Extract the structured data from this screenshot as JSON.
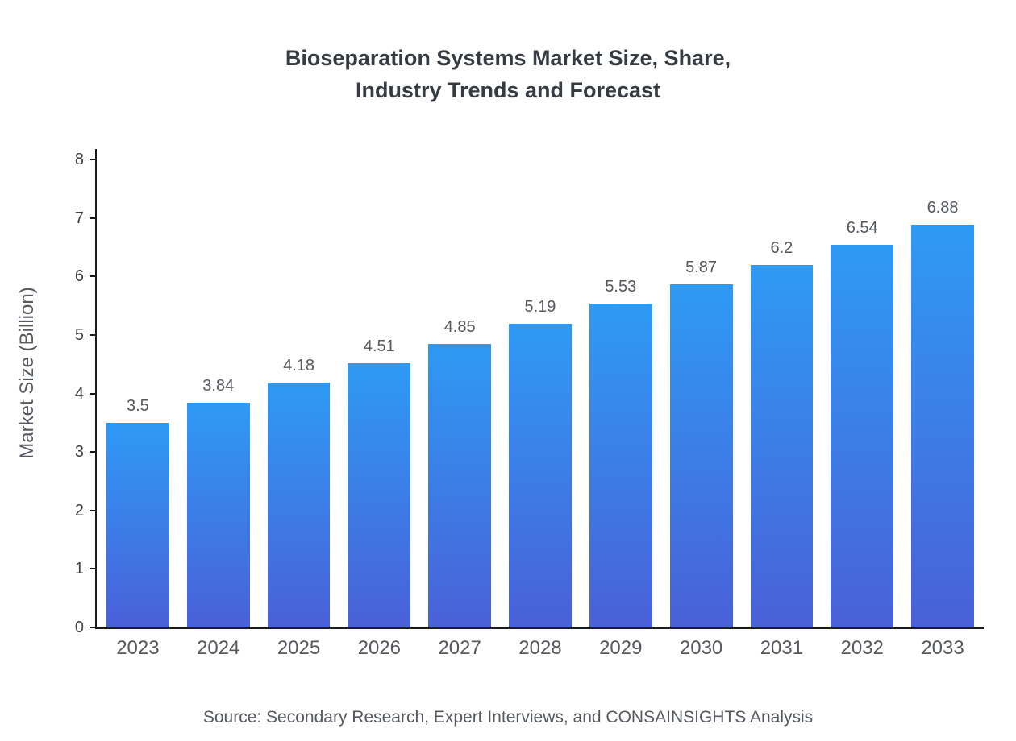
{
  "chart": {
    "title_line1": "Bioseparation Systems Market Size, Share,",
    "title_line2": "Industry Trends and Forecast",
    "source": "Source: Secondary Research, Expert Interviews, and CONSAINSIGHTS Analysis"
  },
  "chart_data": {
    "type": "bar",
    "title": "Bioseparation Systems Market Size, Share, Industry Trends and Forecast",
    "categories": [
      "2023",
      "2024",
      "2025",
      "2026",
      "2027",
      "2028",
      "2029",
      "2030",
      "2031",
      "2032",
      "2033"
    ],
    "values": [
      3.5,
      3.84,
      4.18,
      4.51,
      4.85,
      5.19,
      5.53,
      5.87,
      6.2,
      6.54,
      6.88
    ],
    "value_labels": [
      "3.5",
      "3.84",
      "4.18",
      "4.51",
      "4.85",
      "5.19",
      "5.53",
      "5.87",
      "6.2",
      "6.54",
      "6.88"
    ],
    "xlabel": "",
    "ylabel": "Market Size (Billion)",
    "ylim": [
      0,
      8
    ],
    "yticks": [
      0,
      1,
      2,
      3,
      4,
      5,
      6,
      7,
      8
    ],
    "grid": false,
    "legend_position": "none",
    "bar_gradient_top": "#2e9af5",
    "bar_gradient_bottom": "#4a60d9",
    "source_note": "Source: Secondary Research, Expert Interviews, and CONSAINSIGHTS Analysis"
  }
}
